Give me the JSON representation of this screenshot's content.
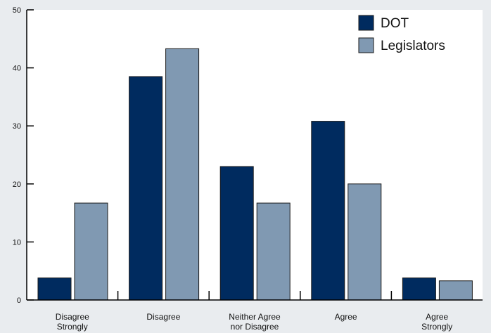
{
  "chart_data": {
    "type": "bar",
    "title": "",
    "xlabel": "",
    "ylabel": "",
    "ylim": [
      0,
      50
    ],
    "yticks": [
      0,
      10,
      20,
      30,
      40,
      50
    ],
    "grid": false,
    "legend_position": "top-right",
    "categories": [
      [
        "Disagree",
        "Strongly"
      ],
      [
        "Disagree"
      ],
      [
        "Neither Agree",
        "nor Disagree"
      ],
      [
        "Agree"
      ],
      [
        "Agree",
        "Strongly"
      ]
    ],
    "series": [
      {
        "name": "DOT",
        "color": "#002b5f",
        "values": [
          3.8,
          38.5,
          23,
          30.8,
          3.8
        ]
      },
      {
        "name": "Legislators",
        "color": "#8099b2",
        "values": [
          16.7,
          43.3,
          16.7,
          20,
          3.3
        ]
      }
    ]
  }
}
